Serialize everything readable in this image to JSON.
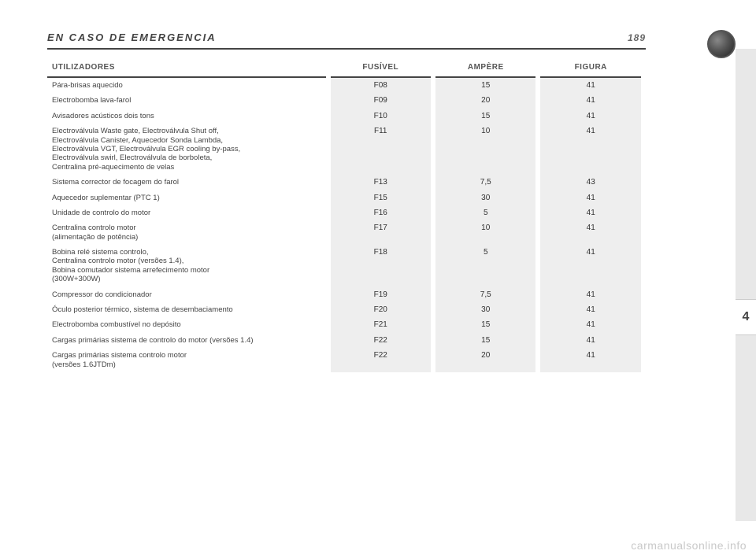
{
  "header": {
    "title": "EN CASO DE EMERGENCIA",
    "page_number": "189"
  },
  "side_tab": "4",
  "watermark": "carmanualsonline.info",
  "table": {
    "columns": {
      "utilizadores": "UTILIZADORES",
      "fusivel": "FUSÍVEL",
      "ampere": "AMPÈRE",
      "figura": "FIGURA"
    },
    "rows": [
      {
        "util": "Pára-brisas aquecido",
        "fuse": "F08",
        "amp": "15",
        "fig": "41"
      },
      {
        "util": "Electrobomba lava-farol",
        "fuse": "F09",
        "amp": "20",
        "fig": "41"
      },
      {
        "util": "Avisadores acústicos dois tons",
        "fuse": "F10",
        "amp": "15",
        "fig": "41"
      },
      {
        "util": "Electroválvula Waste gate, Electroválvula Shut off,\nElectroválvula Canister, Aquecedor Sonda Lambda,\nElectroválvula VGT, Electroválvula EGR cooling by-pass,\nElectroválvula swirl, Electroválvula de borboleta,\nCentralina pré-aquecimento de velas",
        "fuse": "F11",
        "amp": "10",
        "fig": "41"
      },
      {
        "util": "Sistema corrector de focagem do farol",
        "fuse": "F13",
        "amp": "7,5",
        "fig": "43"
      },
      {
        "util": "Aquecedor suplementar (PTC 1)",
        "fuse": "F15",
        "amp": "30",
        "fig": "41"
      },
      {
        "util": "Unidade de controlo do motor",
        "fuse": "F16",
        "amp": "5",
        "fig": "41"
      },
      {
        "util": "Centralina controlo motor\n(alimentação de potência)",
        "fuse": "F17",
        "amp": "10",
        "fig": "41"
      },
      {
        "util": "Bobina relé sistema controlo,\nCentralina controlo motor (versões 1.4),\nBobina comutador sistema arrefecimento motor\n(300W+300W)",
        "fuse": "F18",
        "amp": "5",
        "fig": "41"
      },
      {
        "util": "Compressor do condicionador",
        "fuse": "F19",
        "amp": "7,5",
        "fig": "41"
      },
      {
        "util": "Óculo posterior térmico, sistema de desembaciamento",
        "fuse": "F20",
        "amp": "30",
        "fig": "41"
      },
      {
        "util": "Electrobomba combustível no depósito",
        "fuse": "F21",
        "amp": "15",
        "fig": "41"
      },
      {
        "util": "Cargas primárias sistema de controlo do motor (versões 1.4)",
        "fuse": "F22",
        "amp": "15",
        "fig": "41"
      },
      {
        "util": "Cargas primárias sistema controlo motor\n(versões 1.6JTDm)",
        "fuse": "F22",
        "amp": "20",
        "fig": "41"
      }
    ]
  }
}
